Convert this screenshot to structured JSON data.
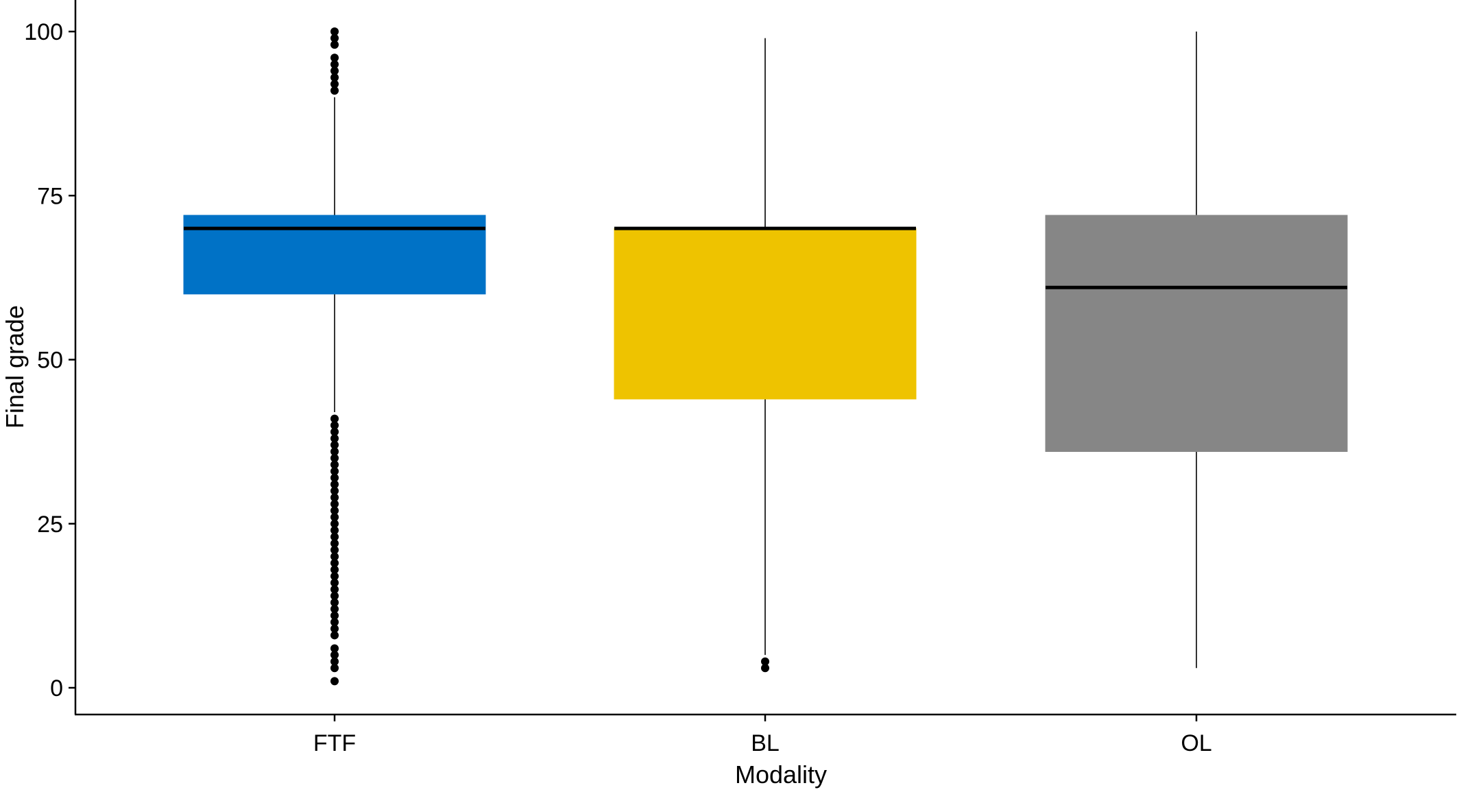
{
  "chart_data": {
    "type": "boxplot",
    "title": "",
    "xlabel": "Modality",
    "ylabel": "Final grade",
    "ylim": [
      0,
      104
    ],
    "yticks": [
      "0",
      "25",
      "50",
      "75",
      "100"
    ],
    "grid": false,
    "legend": "none",
    "categories": [
      "FTF",
      "BL",
      "OL"
    ],
    "boxes": [
      {
        "category": "FTF",
        "color": "#0072C6",
        "whisker_low": 42,
        "q1": 60,
        "median": 70,
        "q3": 72,
        "whisker_high": 90,
        "outliers": [
          1,
          3,
          4,
          5,
          6,
          8,
          9,
          10,
          11,
          12,
          13,
          14,
          15,
          16,
          17,
          18,
          19,
          20,
          21,
          22,
          23,
          24,
          25,
          26,
          27,
          28,
          29,
          30,
          31,
          32,
          33,
          34,
          35,
          36,
          37,
          38,
          39,
          40,
          41,
          91,
          92,
          93,
          94,
          95,
          96,
          98,
          99,
          100
        ]
      },
      {
        "category": "BL",
        "color": "#EEC300",
        "whisker_low": 5,
        "q1": 44,
        "median": 70,
        "q3": 70,
        "whisker_high": 99,
        "outliers": [
          3,
          4
        ]
      },
      {
        "category": "OL",
        "color": "#868686",
        "whisker_low": 3,
        "q1": 36,
        "median": 61,
        "q3": 72,
        "whisker_high": 100,
        "outliers": []
      }
    ]
  }
}
